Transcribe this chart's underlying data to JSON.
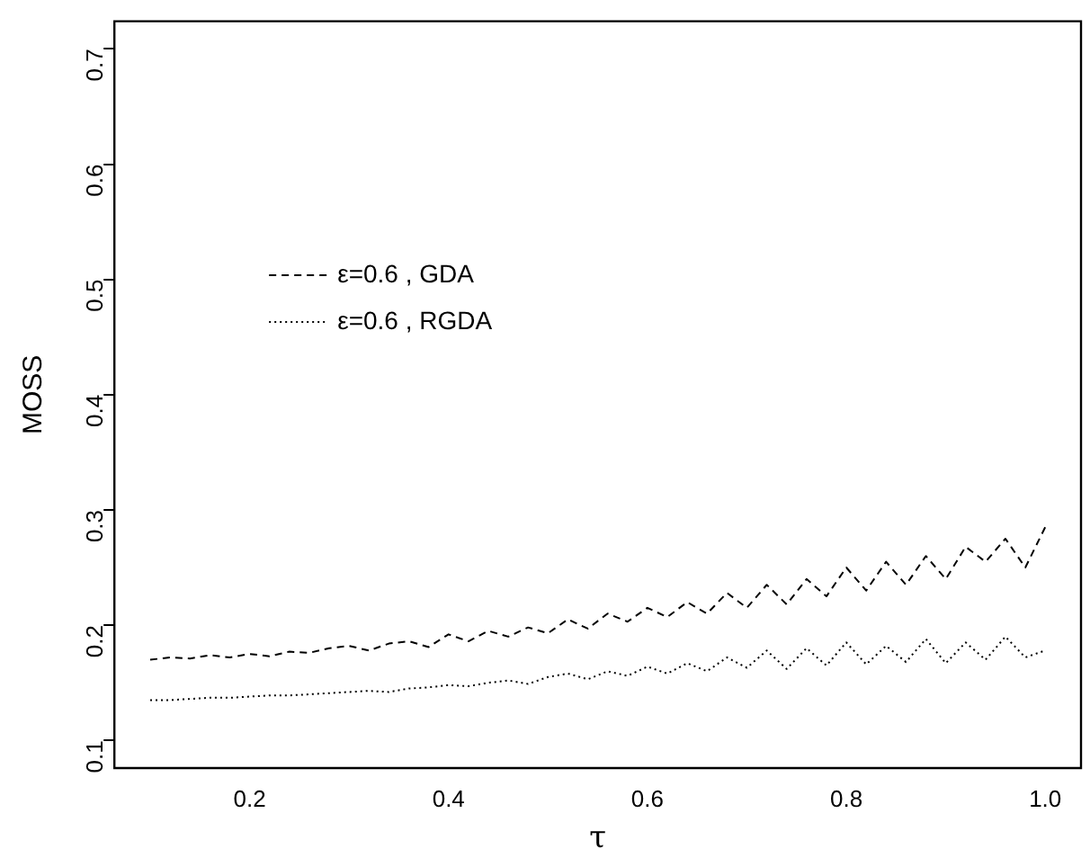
{
  "chart_data": {
    "type": "line",
    "xlabel": "τ",
    "ylabel": "MOSS",
    "x": [
      0.1,
      0.12,
      0.14,
      0.16,
      0.18,
      0.2,
      0.22,
      0.24,
      0.26,
      0.28,
      0.3,
      0.32,
      0.34,
      0.36,
      0.38,
      0.4,
      0.42,
      0.44,
      0.46,
      0.48,
      0.5,
      0.52,
      0.54,
      0.56,
      0.58,
      0.6,
      0.62,
      0.64,
      0.66,
      0.68,
      0.7,
      0.72,
      0.74,
      0.76,
      0.78,
      0.8,
      0.82,
      0.84,
      0.86,
      0.88,
      0.9,
      0.92,
      0.94,
      0.96,
      0.98,
      1.0
    ],
    "series": [
      {
        "name": "ε=0.6 , GDA",
        "color": "#000000",
        "line_style": "dashed",
        "values": [
          0.17,
          0.172,
          0.171,
          0.174,
          0.172,
          0.175,
          0.173,
          0.177,
          0.176,
          0.18,
          0.182,
          0.178,
          0.184,
          0.186,
          0.181,
          0.192,
          0.186,
          0.195,
          0.19,
          0.198,
          0.193,
          0.205,
          0.197,
          0.21,
          0.203,
          0.215,
          0.207,
          0.22,
          0.21,
          0.228,
          0.215,
          0.235,
          0.218,
          0.24,
          0.225,
          0.25,
          0.23,
          0.255,
          0.235,
          0.26,
          0.24,
          0.268,
          0.255,
          0.275,
          0.25,
          0.285
        ]
      },
      {
        "name": "ε=0.6 , RGDA",
        "color": "#000000",
        "line_style": "dotted",
        "values": [
          0.135,
          0.135,
          0.136,
          0.137,
          0.137,
          0.138,
          0.139,
          0.139,
          0.14,
          0.141,
          0.142,
          0.143,
          0.142,
          0.145,
          0.146,
          0.148,
          0.147,
          0.15,
          0.152,
          0.149,
          0.155,
          0.158,
          0.153,
          0.16,
          0.156,
          0.164,
          0.158,
          0.167,
          0.16,
          0.172,
          0.163,
          0.178,
          0.162,
          0.18,
          0.165,
          0.185,
          0.166,
          0.182,
          0.168,
          0.188,
          0.167,
          0.185,
          0.17,
          0.19,
          0.172,
          0.178
        ]
      }
    ],
    "xlim": [
      0.064,
      1.036
    ],
    "xticks": [
      0.2,
      0.4,
      0.6,
      0.8,
      {
        "value": 1,
        "label": "1.0"
      }
    ],
    "ylim": [
      0.076,
      0.724
    ],
    "yticks": [
      0.1,
      0.2,
      0.3,
      0.4,
      0.5,
      0.6,
      0.7
    ],
    "grid": false,
    "legend": "top left",
    "marker": "none"
  }
}
